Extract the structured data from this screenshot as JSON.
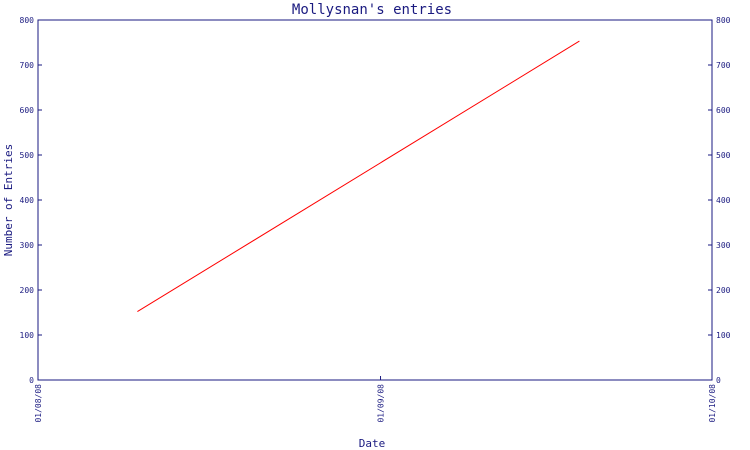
{
  "chart_data": {
    "type": "line",
    "title": "Mollysnan's entries",
    "xlabel": "Date",
    "ylabel": "Number of Entries",
    "x_ticks": [
      "01/08/08",
      "01/09/08",
      "01/10/08"
    ],
    "xlim": [
      "01/08/08",
      "01/10/08"
    ],
    "ylim": [
      0,
      800
    ],
    "y_ticks": [
      0,
      100,
      200,
      300,
      400,
      500,
      600,
      700,
      800
    ],
    "grid": false,
    "legend": "none",
    "series_color": "#ff0000",
    "axis_color": "#1a1a80",
    "series": [
      {
        "x": [
          "10/08/08",
          "19/09/08"
        ],
        "values": [
          152,
          753
        ]
      }
    ]
  }
}
